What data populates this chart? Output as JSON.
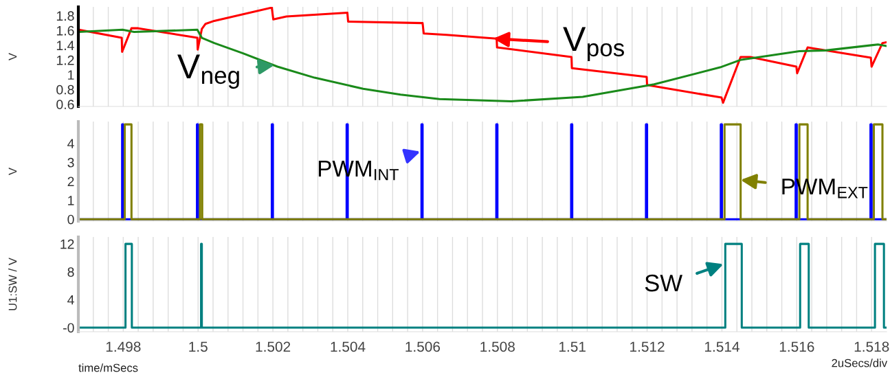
{
  "chart_data": [
    {
      "type": "line",
      "ylabel": "V",
      "xlim": [
        1.4968,
        1.5184
      ],
      "ylim": [
        0.57,
        1.92
      ],
      "yticks": [
        0.6,
        0.8,
        1,
        1.2,
        1.4,
        1.6,
        1.8
      ],
      "tick_labels": "y",
      "grid": "x",
      "legend": false,
      "xticks": [
        {
          "value": 1.4972,
          "label": null
        },
        {
          "value": 1.4976,
          "label": null
        },
        {
          "value": 1.498,
          "label": null
        },
        {
          "value": 1.4984,
          "label": null
        },
        {
          "value": 1.4988,
          "label": null
        },
        {
          "value": 1.4992,
          "label": null
        },
        {
          "value": 1.4996,
          "label": null
        },
        {
          "value": 1.5,
          "label": null
        },
        {
          "value": 1.5004,
          "label": null
        },
        {
          "value": 1.5008,
          "label": null
        },
        {
          "value": 1.5012,
          "label": null
        },
        {
          "value": 1.5016,
          "label": null
        },
        {
          "value": 1.502,
          "label": null
        },
        {
          "value": 1.5024,
          "label": null
        },
        {
          "value": 1.5028,
          "label": null
        },
        {
          "value": 1.5032,
          "label": null
        },
        {
          "value": 1.5036,
          "label": null
        },
        {
          "value": 1.504,
          "label": null
        },
        {
          "value": 1.5044,
          "label": null
        },
        {
          "value": 1.5048,
          "label": null
        },
        {
          "value": 1.5052,
          "label": null
        },
        {
          "value": 1.5056,
          "label": null
        },
        {
          "value": 1.506,
          "label": null
        },
        {
          "value": 1.5064,
          "label": null
        },
        {
          "value": 1.5068,
          "label": null
        },
        {
          "value": 1.5072,
          "label": null
        },
        {
          "value": 1.5076,
          "label": null
        },
        {
          "value": 1.508,
          "label": null
        },
        {
          "value": 1.5084,
          "label": null
        },
        {
          "value": 1.5088,
          "label": null
        },
        {
          "value": 1.5092,
          "label": null
        },
        {
          "value": 1.5096,
          "label": null
        },
        {
          "value": 1.51,
          "label": null
        },
        {
          "value": 1.5104,
          "label": null
        },
        {
          "value": 1.5108,
          "label": null
        },
        {
          "value": 1.5112,
          "label": null
        },
        {
          "value": 1.5116,
          "label": null
        },
        {
          "value": 1.512,
          "label": null
        },
        {
          "value": 1.5124,
          "label": null
        },
        {
          "value": 1.5128,
          "label": null
        },
        {
          "value": 1.5132,
          "label": null
        },
        {
          "value": 1.5136,
          "label": null
        },
        {
          "value": 1.514,
          "label": null
        },
        {
          "value": 1.5144,
          "label": null
        },
        {
          "value": 1.5148,
          "label": null
        },
        {
          "value": 1.5152,
          "label": null
        },
        {
          "value": 1.5156,
          "label": null
        },
        {
          "value": 1.516,
          "label": null
        },
        {
          "value": 1.5164,
          "label": null
        },
        {
          "value": 1.5168,
          "label": null
        },
        {
          "value": 1.5172,
          "label": null
        },
        {
          "value": 1.5176,
          "label": null
        },
        {
          "value": 1.518,
          "label": null
        }
      ],
      "series": [
        {
          "color": "#ff0000",
          "x": [
            1.49681,
            1.49796,
            1.49797,
            1.49822,
            1.4984,
            1.49998,
            1.49999,
            1.5001,
            1.5002,
            1.50043,
            1.50197,
            1.50201,
            1.50236,
            1.50399,
            1.50401,
            1.506,
            1.50603,
            1.50664,
            1.50798,
            1.50799,
            1.50998,
            1.50999,
            1.51199,
            1.512,
            1.51399,
            1.51403,
            1.5145,
            1.51476,
            1.51599,
            1.51601,
            1.51629,
            1.51642,
            1.51798,
            1.518,
            1.51829,
            1.5184
          ],
          "values": [
            1.61,
            1.5,
            1.31,
            1.63,
            1.63,
            1.5,
            1.34,
            1.62,
            1.69,
            1.73,
            1.91,
            1.75,
            1.79,
            1.84,
            1.72,
            1.7,
            1.56,
            1.54,
            1.49,
            1.37,
            1.24,
            1.09,
            0.97,
            0.86,
            0.69,
            0.62,
            1.24,
            1.24,
            1.11,
            1.02,
            1.37,
            1.36,
            1.23,
            1.11,
            1.43,
            1.44
          ]
        },
        {
          "color": "#1a8a1a",
          "x": [
            1.49681,
            1.49798,
            1.49829,
            1.49998,
            1.5001,
            1.50043,
            1.5012,
            1.50212,
            1.50311,
            1.50441,
            1.50541,
            1.50645,
            1.50837,
            1.51028,
            1.51219,
            1.51395,
            1.51449,
            1.51607,
            1.51678,
            1.51817,
            1.5184
          ],
          "values": [
            1.58,
            1.61,
            1.58,
            1.61,
            1.5,
            1.43,
            1.29,
            1.11,
            0.96,
            0.81,
            0.73,
            0.67,
            0.64,
            0.7,
            0.87,
            1.1,
            1.2,
            1.32,
            1.33,
            1.41,
            1.39
          ]
        }
      ],
      "annotations": [
        {
          "text": "V$_{neg}$",
          "x": 1.50204,
          "y": 1.13
        },
        {
          "text": "V$_{pos}$",
          "x": 1.50789,
          "y": 1.49
        }
      ]
    },
    {
      "type": "line",
      "ylabel": "V",
      "xlim": [
        1.4968,
        1.5184
      ],
      "ylim": [
        -0.1,
        5.15
      ],
      "yticks": [
        0,
        1,
        2,
        3,
        4
      ],
      "tick_labels": "y",
      "grid": "x",
      "legend": false,
      "xticks": [
        {
          "value": 1.4972,
          "label": null
        },
        {
          "value": 1.4976,
          "label": null
        },
        {
          "value": 1.498,
          "label": null
        },
        {
          "value": 1.4984,
          "label": null
        },
        {
          "value": 1.4988,
          "label": null
        },
        {
          "value": 1.4992,
          "label": null
        },
        {
          "value": 1.4996,
          "label": null
        },
        {
          "value": 1.5,
          "label": null
        },
        {
          "value": 1.5004,
          "label": null
        },
        {
          "value": 1.5008,
          "label": null
        },
        {
          "value": 1.5012,
          "label": null
        },
        {
          "value": 1.5016,
          "label": null
        },
        {
          "value": 1.502,
          "label": null
        },
        {
          "value": 1.5024,
          "label": null
        },
        {
          "value": 1.5028,
          "label": null
        },
        {
          "value": 1.5032,
          "label": null
        },
        {
          "value": 1.5036,
          "label": null
        },
        {
          "value": 1.504,
          "label": null
        },
        {
          "value": 1.5044,
          "label": null
        },
        {
          "value": 1.5048,
          "label": null
        },
        {
          "value": 1.5052,
          "label": null
        },
        {
          "value": 1.5056,
          "label": null
        },
        {
          "value": 1.506,
          "label": null
        },
        {
          "value": 1.5064,
          "label": null
        },
        {
          "value": 1.5068,
          "label": null
        },
        {
          "value": 1.5072,
          "label": null
        },
        {
          "value": 1.5076,
          "label": null
        },
        {
          "value": 1.508,
          "label": null
        },
        {
          "value": 1.5084,
          "label": null
        },
        {
          "value": 1.5088,
          "label": null
        },
        {
          "value": 1.5092,
          "label": null
        },
        {
          "value": 1.5096,
          "label": null
        },
        {
          "value": 1.51,
          "label": null
        },
        {
          "value": 1.5104,
          "label": null
        },
        {
          "value": 1.5108,
          "label": null
        },
        {
          "value": 1.5112,
          "label": null
        },
        {
          "value": 1.5116,
          "label": null
        },
        {
          "value": 1.512,
          "label": null
        },
        {
          "value": 1.5124,
          "label": null
        },
        {
          "value": 1.5128,
          "label": null
        },
        {
          "value": 1.5132,
          "label": null
        },
        {
          "value": 1.5136,
          "label": null
        },
        {
          "value": 1.514,
          "label": null
        },
        {
          "value": 1.5144,
          "label": null
        },
        {
          "value": 1.5148,
          "label": null
        },
        {
          "value": 1.5152,
          "label": null
        },
        {
          "value": 1.5156,
          "label": null
        },
        {
          "value": 1.516,
          "label": null
        },
        {
          "value": 1.5164,
          "label": null
        },
        {
          "value": 1.5168,
          "label": null
        },
        {
          "value": 1.5172,
          "label": null
        },
        {
          "value": 1.5176,
          "label": null
        },
        {
          "value": 1.518,
          "label": null
        }
      ],
      "series": [
        {
          "color": "#0000ff",
          "x": [
            1.49681,
            1.49797,
            1.49797,
            1.498,
            1.498,
            1.49997,
            1.49997,
            1.5,
            1.5,
            1.50197,
            1.50197,
            1.502,
            1.502,
            1.50397,
            1.50397,
            1.504,
            1.504,
            1.50597,
            1.50597,
            1.506,
            1.506,
            1.50797,
            1.50797,
            1.508,
            1.508,
            1.50997,
            1.50997,
            1.51,
            1.51,
            1.51197,
            1.51197,
            1.512,
            1.512,
            1.51397,
            1.51397,
            1.514,
            1.514,
            1.51597,
            1.51597,
            1.516,
            1.516,
            1.51797,
            1.51797,
            1.518,
            1.518,
            1.5184
          ],
          "values": [
            0,
            0,
            5,
            5,
            0,
            0,
            5,
            5,
            0,
            0,
            5,
            5,
            0,
            0,
            5,
            5,
            0,
            0,
            5,
            5,
            0,
            0,
            5,
            5,
            0,
            0,
            5,
            5,
            0,
            0,
            5,
            5,
            0,
            0,
            5,
            5,
            0,
            0,
            5,
            5,
            0,
            0,
            5,
            5,
            0,
            0
          ]
        },
        {
          "color": "#808000",
          "x": [
            1.49681,
            1.49804,
            1.49804,
            1.49822,
            1.49822,
            1.50005,
            1.50005,
            1.50011,
            1.50011,
            1.51407,
            1.51407,
            1.5145,
            1.5145,
            1.51607,
            1.51607,
            1.51629,
            1.51629,
            1.51806,
            1.51806,
            1.51829,
            1.51829,
            1.5184
          ],
          "values": [
            0,
            0,
            5,
            5,
            0,
            0,
            5,
            5,
            0,
            0,
            5,
            5,
            0,
            0,
            5,
            5,
            0,
            0,
            5,
            5,
            0,
            0
          ]
        }
      ],
      "annotations": [
        {
          "text": "PWM$_{INT}$",
          "x": 1.50594,
          "y": 3.57
        },
        {
          "text": "PWM$_{EXT}$",
          "x": 1.5145,
          "y": 2.07
        }
      ]
    },
    {
      "type": "line",
      "ylabel": "U1:SW / V",
      "xlabel": "time/mSecs",
      "xlim": [
        1.4968,
        1.5184
      ],
      "ylim": [
        -0.6,
        13
      ],
      "yticks": [
        {
          "value": 0,
          "label": "-0"
        },
        4,
        8,
        12
      ],
      "grid": "x",
      "legend": false,
      "xticks": [
        {
          "value": 1.4972,
          "label": null
        },
        {
          "value": 1.4976,
          "label": null
        },
        1.498,
        {
          "value": 1.4984,
          "label": null
        },
        {
          "value": 1.4988,
          "label": null
        },
        {
          "value": 1.4992,
          "label": null
        },
        {
          "value": 1.4996,
          "label": null
        },
        1.5,
        {
          "value": 1.5004,
          "label": null
        },
        {
          "value": 1.5008,
          "label": null
        },
        {
          "value": 1.5012,
          "label": null
        },
        {
          "value": 1.5016,
          "label": null
        },
        1.502,
        {
          "value": 1.5024,
          "label": null
        },
        {
          "value": 1.5028,
          "label": null
        },
        {
          "value": 1.5032,
          "label": null
        },
        {
          "value": 1.5036,
          "label": null
        },
        1.504,
        {
          "value": 1.5044,
          "label": null
        },
        {
          "value": 1.5048,
          "label": null
        },
        {
          "value": 1.5052,
          "label": null
        },
        {
          "value": 1.5056,
          "label": null
        },
        1.506,
        {
          "value": 1.5064,
          "label": null
        },
        {
          "value": 1.5068,
          "label": null
        },
        {
          "value": 1.5072,
          "label": null
        },
        {
          "value": 1.5076,
          "label": null
        },
        1.508,
        {
          "value": 1.5084,
          "label": null
        },
        {
          "value": 1.5088,
          "label": null
        },
        {
          "value": 1.5092,
          "label": null
        },
        {
          "value": 1.5096,
          "label": null
        },
        1.51,
        {
          "value": 1.5104,
          "label": null
        },
        {
          "value": 1.5108,
          "label": null
        },
        {
          "value": 1.5112,
          "label": null
        },
        {
          "value": 1.5116,
          "label": null
        },
        1.512,
        {
          "value": 1.5124,
          "label": null
        },
        {
          "value": 1.5128,
          "label": null
        },
        {
          "value": 1.5132,
          "label": null
        },
        {
          "value": 1.5136,
          "label": null
        },
        1.514,
        {
          "value": 1.5144,
          "label": null
        },
        {
          "value": 1.5148,
          "label": null
        },
        {
          "value": 1.5152,
          "label": null
        },
        {
          "value": 1.5156,
          "label": null
        },
        1.516,
        {
          "value": 1.5164,
          "label": null
        },
        {
          "value": 1.5168,
          "label": null
        },
        {
          "value": 1.5172,
          "label": null
        },
        {
          "value": 1.5176,
          "label": null
        },
        1.518
      ],
      "series": [
        {
          "color": "#008080",
          "x": [
            1.49681,
            1.49806,
            1.49806,
            1.49823,
            1.49823,
            1.50008,
            1.50008,
            1.5001,
            1.5001,
            1.51409,
            1.51409,
            1.51453,
            1.51453,
            1.51609,
            1.51609,
            1.51632,
            1.51632,
            1.51809,
            1.51809,
            1.51833,
            1.51833,
            1.5184
          ],
          "values": [
            0,
            0,
            12,
            12,
            0,
            0,
            12,
            12,
            0,
            0,
            12,
            12,
            0,
            0,
            12,
            12,
            0,
            0,
            12,
            12,
            0,
            0
          ]
        }
      ],
      "annotations": [
        {
          "text": "SW",
          "x": 1.51404,
          "y": 9.1
        },
        "2uSecs/div"
      ]
    }
  ]
}
